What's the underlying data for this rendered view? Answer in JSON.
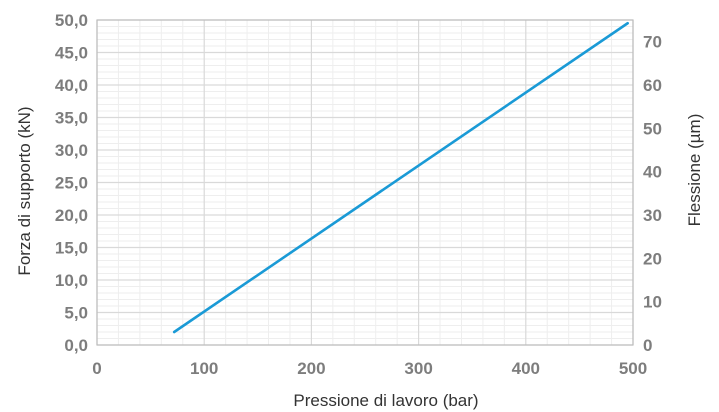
{
  "chart_data": {
    "type": "line",
    "xlabel": "Pressione di lavoro (bar)",
    "ylabel": "Forza di supporto (kN)",
    "y2label": "Flessione (µm)",
    "xlim": [
      0,
      500
    ],
    "ylim": [
      0,
      50
    ],
    "y2lim": [
      0,
      75
    ],
    "xticks": [
      "0",
      "100",
      "200",
      "300",
      "400",
      "500"
    ],
    "yticks": [
      "0,0",
      "5,0",
      "10,0",
      "15,0",
      "20,0",
      "25,0",
      "30,0",
      "35,0",
      "40,0",
      "45,0",
      "50,0"
    ],
    "y2ticks": [
      "0",
      "10",
      "20",
      "30",
      "40",
      "50",
      "60",
      "70"
    ],
    "grid": true,
    "series": [
      {
        "x": [
          72,
          495
        ],
        "y": [
          2.0,
          49.5
        ]
      }
    ]
  },
  "colors": {
    "line": "#1a9ad6",
    "grid_major": "#d9d9d9",
    "grid_minor": "#eeeeee",
    "tick_text": "#7d7d7d",
    "title_text": "#333333"
  }
}
